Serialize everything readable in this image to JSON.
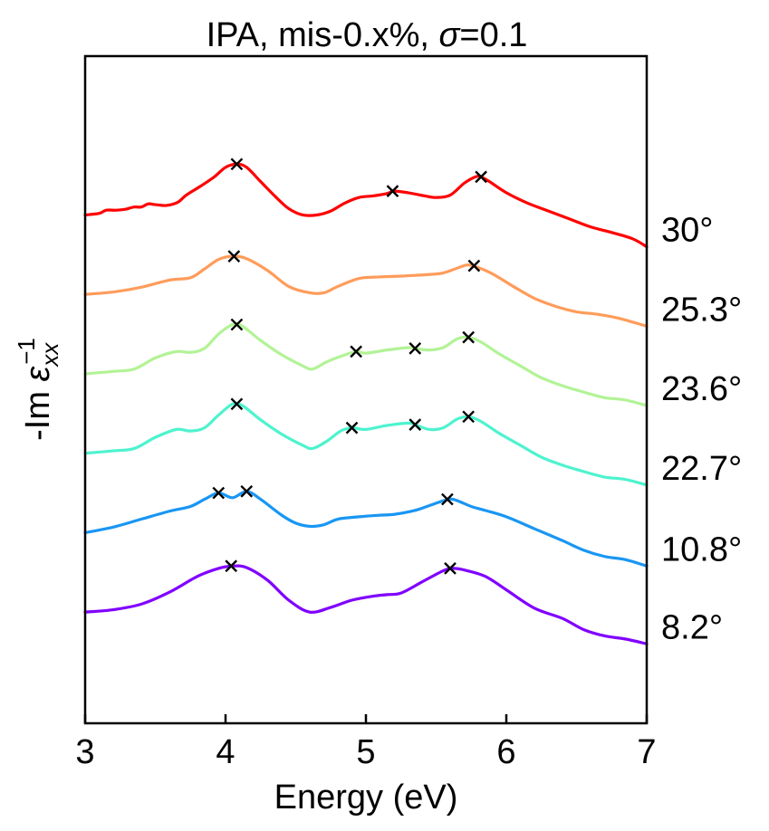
{
  "chart_data": {
    "type": "line",
    "title": "IPA, mis-0.x%, σ=0.1",
    "title_parts": {
      "prefix": "IPA, mis-0.x%, ",
      "symbol": "σ",
      "suffix": "=0.1"
    },
    "xlabel": "Energy (eV)",
    "ylabel": "-Im ε_xx^-1",
    "ylabel_parts": {
      "prefix": "-Im ",
      "symbol": "ε",
      "sub": "xx",
      "sup": "−1"
    },
    "xlim": [
      3,
      7
    ],
    "ylim": [
      -1.4,
      7.0
    ],
    "y_ticks_shown": false,
    "x_ticks": [
      3,
      4,
      5,
      6,
      7
    ],
    "x_tick_labels": [
      "3",
      "4",
      "5",
      "6",
      "7"
    ],
    "grid": false,
    "legend": "none",
    "marker_color": "#000000",
    "series": [
      {
        "angle_label": "8.2°",
        "color": "#8000ff",
        "offset": 0,
        "points": [
          [
            3.0,
            0.0
          ],
          [
            3.2,
            0.03
          ],
          [
            3.4,
            0.1
          ],
          [
            3.6,
            0.25
          ],
          [
            3.8,
            0.45
          ],
          [
            3.95,
            0.55
          ],
          [
            4.05,
            0.58
          ],
          [
            4.15,
            0.56
          ],
          [
            4.3,
            0.4
          ],
          [
            4.45,
            0.15
          ],
          [
            4.6,
            0.0
          ],
          [
            4.75,
            0.06
          ],
          [
            4.9,
            0.15
          ],
          [
            5.05,
            0.2
          ],
          [
            5.15,
            0.22
          ],
          [
            5.25,
            0.24
          ],
          [
            5.4,
            0.38
          ],
          [
            5.55,
            0.52
          ],
          [
            5.62,
            0.55
          ],
          [
            5.7,
            0.53
          ],
          [
            5.85,
            0.45
          ],
          [
            6.0,
            0.28
          ],
          [
            6.2,
            0.05
          ],
          [
            6.4,
            -0.08
          ],
          [
            6.55,
            -0.22
          ],
          [
            6.7,
            -0.3
          ],
          [
            6.85,
            -0.34
          ],
          [
            7.0,
            -0.4
          ]
        ],
        "peaks": [
          [
            4.04,
            0.58
          ],
          [
            5.6,
            0.55
          ]
        ]
      },
      {
        "angle_label": "10.8°",
        "color": "#1996f3",
        "offset": 1,
        "points": [
          [
            3.0,
            0.0
          ],
          [
            3.2,
            0.07
          ],
          [
            3.4,
            0.17
          ],
          [
            3.6,
            0.27
          ],
          [
            3.75,
            0.33
          ],
          [
            3.85,
            0.42
          ],
          [
            3.95,
            0.5
          ],
          [
            4.05,
            0.44
          ],
          [
            4.15,
            0.52
          ],
          [
            4.25,
            0.42
          ],
          [
            4.4,
            0.22
          ],
          [
            4.5,
            0.12
          ],
          [
            4.6,
            0.08
          ],
          [
            4.7,
            0.1
          ],
          [
            4.8,
            0.17
          ],
          [
            4.95,
            0.2
          ],
          [
            5.1,
            0.22
          ],
          [
            5.2,
            0.23
          ],
          [
            5.35,
            0.28
          ],
          [
            5.45,
            0.34
          ],
          [
            5.55,
            0.4
          ],
          [
            5.62,
            0.42
          ],
          [
            5.75,
            0.33
          ],
          [
            5.85,
            0.28
          ],
          [
            6.0,
            0.2
          ],
          [
            6.2,
            0.05
          ],
          [
            6.4,
            -0.1
          ],
          [
            6.55,
            -0.22
          ],
          [
            6.7,
            -0.3
          ],
          [
            6.85,
            -0.34
          ],
          [
            7.0,
            -0.42
          ]
        ],
        "peaks": [
          [
            3.95,
            0.5
          ],
          [
            4.15,
            0.52
          ],
          [
            5.58,
            0.42
          ]
        ]
      },
      {
        "angle_label": "22.7°",
        "color": "#4df3ce",
        "offset": 2,
        "points": [
          [
            3.0,
            0.0
          ],
          [
            3.2,
            0.03
          ],
          [
            3.35,
            0.06
          ],
          [
            3.5,
            0.2
          ],
          [
            3.65,
            0.3
          ],
          [
            3.75,
            0.28
          ],
          [
            3.85,
            0.32
          ],
          [
            3.95,
            0.48
          ],
          [
            4.05,
            0.62
          ],
          [
            4.12,
            0.6
          ],
          [
            4.25,
            0.42
          ],
          [
            4.4,
            0.24
          ],
          [
            4.55,
            0.1
          ],
          [
            4.62,
            0.06
          ],
          [
            4.72,
            0.15
          ],
          [
            4.82,
            0.28
          ],
          [
            4.9,
            0.32
          ],
          [
            5.0,
            0.3
          ],
          [
            5.15,
            0.35
          ],
          [
            5.3,
            0.38
          ],
          [
            5.35,
            0.36
          ],
          [
            5.45,
            0.3
          ],
          [
            5.55,
            0.32
          ],
          [
            5.65,
            0.43
          ],
          [
            5.73,
            0.46
          ],
          [
            5.82,
            0.4
          ],
          [
            5.95,
            0.25
          ],
          [
            6.1,
            0.1
          ],
          [
            6.25,
            -0.05
          ],
          [
            6.4,
            -0.15
          ],
          [
            6.55,
            -0.23
          ],
          [
            6.7,
            -0.3
          ],
          [
            6.85,
            -0.33
          ],
          [
            7.0,
            -0.4
          ]
        ],
        "peaks": [
          [
            4.08,
            0.62
          ],
          [
            4.9,
            0.32
          ],
          [
            5.35,
            0.36
          ],
          [
            5.73,
            0.46
          ]
        ]
      },
      {
        "angle_label": "23.6°",
        "color": "#b2f396",
        "offset": 3,
        "points": [
          [
            3.0,
            0.0
          ],
          [
            3.2,
            0.03
          ],
          [
            3.35,
            0.06
          ],
          [
            3.5,
            0.2
          ],
          [
            3.65,
            0.28
          ],
          [
            3.75,
            0.27
          ],
          [
            3.85,
            0.32
          ],
          [
            3.95,
            0.5
          ],
          [
            4.05,
            0.62
          ],
          [
            4.12,
            0.6
          ],
          [
            4.25,
            0.42
          ],
          [
            4.4,
            0.24
          ],
          [
            4.55,
            0.1
          ],
          [
            4.62,
            0.06
          ],
          [
            4.72,
            0.15
          ],
          [
            4.82,
            0.22
          ],
          [
            4.93,
            0.28
          ],
          [
            5.0,
            0.26
          ],
          [
            5.15,
            0.3
          ],
          [
            5.3,
            0.33
          ],
          [
            5.35,
            0.32
          ],
          [
            5.45,
            0.3
          ],
          [
            5.55,
            0.33
          ],
          [
            5.65,
            0.44
          ],
          [
            5.73,
            0.46
          ],
          [
            5.82,
            0.4
          ],
          [
            5.95,
            0.25
          ],
          [
            6.1,
            0.1
          ],
          [
            6.25,
            -0.05
          ],
          [
            6.4,
            -0.15
          ],
          [
            6.55,
            -0.23
          ],
          [
            6.7,
            -0.3
          ],
          [
            6.85,
            -0.33
          ],
          [
            7.0,
            -0.4
          ]
        ],
        "peaks": [
          [
            4.08,
            0.62
          ],
          [
            4.93,
            0.28
          ],
          [
            5.35,
            0.32
          ],
          [
            5.73,
            0.46
          ]
        ]
      },
      {
        "angle_label": "25.3°",
        "color": "#ff9c5b",
        "offset": 4,
        "points": [
          [
            3.0,
            0.0
          ],
          [
            3.2,
            0.03
          ],
          [
            3.4,
            0.09
          ],
          [
            3.6,
            0.18
          ],
          [
            3.75,
            0.21
          ],
          [
            3.85,
            0.32
          ],
          [
            3.95,
            0.44
          ],
          [
            4.05,
            0.48
          ],
          [
            4.15,
            0.45
          ],
          [
            4.3,
            0.3
          ],
          [
            4.45,
            0.1
          ],
          [
            4.6,
            0.02
          ],
          [
            4.7,
            0.02
          ],
          [
            4.8,
            0.1
          ],
          [
            4.95,
            0.2
          ],
          [
            5.1,
            0.22
          ],
          [
            5.25,
            0.23
          ],
          [
            5.35,
            0.24
          ],
          [
            5.45,
            0.25
          ],
          [
            5.55,
            0.27
          ],
          [
            5.65,
            0.33
          ],
          [
            5.72,
            0.37
          ],
          [
            5.78,
            0.35
          ],
          [
            5.9,
            0.26
          ],
          [
            6.05,
            0.1
          ],
          [
            6.2,
            -0.05
          ],
          [
            6.35,
            -0.15
          ],
          [
            6.5,
            -0.22
          ],
          [
            6.65,
            -0.25
          ],
          [
            6.8,
            -0.3
          ],
          [
            7.0,
            -0.4
          ]
        ],
        "peaks": [
          [
            4.06,
            0.48
          ],
          [
            5.77,
            0.36
          ]
        ]
      },
      {
        "angle_label": "30°",
        "color": "#ff0000",
        "offset": 5,
        "points": [
          [
            3.0,
            0.0
          ],
          [
            3.1,
            0.02
          ],
          [
            3.15,
            0.06
          ],
          [
            3.22,
            0.06
          ],
          [
            3.28,
            0.07
          ],
          [
            3.35,
            0.1
          ],
          [
            3.4,
            0.1
          ],
          [
            3.45,
            0.14
          ],
          [
            3.5,
            0.13
          ],
          [
            3.58,
            0.12
          ],
          [
            3.66,
            0.16
          ],
          [
            3.72,
            0.25
          ],
          [
            3.82,
            0.36
          ],
          [
            3.92,
            0.48
          ],
          [
            4.0,
            0.6
          ],
          [
            4.08,
            0.64
          ],
          [
            4.15,
            0.6
          ],
          [
            4.25,
            0.42
          ],
          [
            4.35,
            0.24
          ],
          [
            4.45,
            0.08
          ],
          [
            4.55,
            0.0
          ],
          [
            4.65,
            0.0
          ],
          [
            4.75,
            0.05
          ],
          [
            4.85,
            0.15
          ],
          [
            4.95,
            0.22
          ],
          [
            5.05,
            0.24
          ],
          [
            5.15,
            0.27
          ],
          [
            5.2,
            0.3
          ],
          [
            5.3,
            0.28
          ],
          [
            5.42,
            0.24
          ],
          [
            5.5,
            0.22
          ],
          [
            5.6,
            0.25
          ],
          [
            5.7,
            0.4
          ],
          [
            5.78,
            0.48
          ],
          [
            5.82,
            0.48
          ],
          [
            5.88,
            0.42
          ],
          [
            6.0,
            0.28
          ],
          [
            6.15,
            0.15
          ],
          [
            6.3,
            0.05
          ],
          [
            6.45,
            -0.05
          ],
          [
            6.6,
            -0.15
          ],
          [
            6.75,
            -0.22
          ],
          [
            6.9,
            -0.3
          ],
          [
            7.0,
            -0.4
          ]
        ],
        "peaks": [
          [
            4.08,
            0.64
          ],
          [
            5.19,
            0.3
          ],
          [
            5.82,
            0.48
          ]
        ]
      }
    ]
  }
}
